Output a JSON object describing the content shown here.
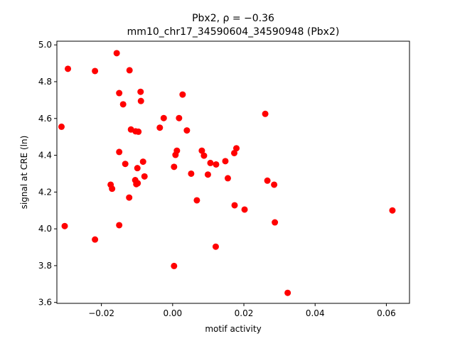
{
  "chart_data": {
    "type": "scatter",
    "title_line1": "Pbx2, ρ = −0.36",
    "title_line2": "mm10_chr17_34590604_34590948 (Pbx2)",
    "xlabel": "motif activity",
    "ylabel": "signal at CRE (ln)",
    "xlim": [
      -0.0325,
      0.0665
    ],
    "ylim": [
      3.595,
      5.02
    ],
    "xticks": [
      -0.02,
      0.0,
      0.02,
      0.04,
      0.06
    ],
    "xtick_labels": [
      "−0.02",
      "0.00",
      "0.02",
      "0.04",
      "0.06"
    ],
    "yticks": [
      3.6,
      3.8,
      4.0,
      4.2,
      4.4,
      4.6,
      4.8,
      5.0
    ],
    "ytick_labels": [
      "3.6",
      "3.8",
      "4.0",
      "4.2",
      "4.4",
      "4.6",
      "4.8",
      "5.0"
    ],
    "grid": false,
    "marker_color": "#ff0000",
    "points": [
      {
        "x": -0.0157,
        "y": 4.955
      },
      {
        "x": -0.0294,
        "y": 4.87
      },
      {
        "x": -0.0218,
        "y": 4.858
      },
      {
        "x": -0.0121,
        "y": 4.862
      },
      {
        "x": -0.015,
        "y": 4.738
      },
      {
        "x": -0.009,
        "y": 4.745
      },
      {
        "x": 0.0028,
        "y": 4.73
      },
      {
        "x": -0.0139,
        "y": 4.677
      },
      {
        "x": -0.0089,
        "y": 4.695
      },
      {
        "x": -0.0025,
        "y": 4.602
      },
      {
        "x": 0.0018,
        "y": 4.602
      },
      {
        "x": 0.026,
        "y": 4.625
      },
      {
        "x": -0.0036,
        "y": 4.55
      },
      {
        "x": -0.0117,
        "y": 4.54
      },
      {
        "x": -0.0104,
        "y": 4.53
      },
      {
        "x": -0.0096,
        "y": 4.528
      },
      {
        "x": 0.004,
        "y": 4.535
      },
      {
        "x": -0.0312,
        "y": 4.555
      },
      {
        "x": 0.0179,
        "y": 4.438
      },
      {
        "x": 0.0082,
        "y": 4.425
      },
      {
        "x": 0.0012,
        "y": 4.425
      },
      {
        "x": -0.015,
        "y": 4.418
      },
      {
        "x": 0.0173,
        "y": 4.412
      },
      {
        "x": 0.0008,
        "y": 4.402
      },
      {
        "x": 0.0088,
        "y": 4.398
      },
      {
        "x": 0.0148,
        "y": 4.368
      },
      {
        "x": -0.0083,
        "y": 4.365
      },
      {
        "x": 0.0106,
        "y": 4.358
      },
      {
        "x": 0.0122,
        "y": 4.35
      },
      {
        "x": -0.0133,
        "y": 4.353
      },
      {
        "x": 0.0004,
        "y": 4.337
      },
      {
        "x": -0.0099,
        "y": 4.33
      },
      {
        "x": 0.0052,
        "y": 4.3
      },
      {
        "x": 0.0099,
        "y": 4.295
      },
      {
        "x": -0.0079,
        "y": 4.285
      },
      {
        "x": 0.0155,
        "y": 4.275
      },
      {
        "x": -0.0105,
        "y": 4.265
      },
      {
        "x": 0.0266,
        "y": 4.262
      },
      {
        "x": -0.0102,
        "y": 4.243
      },
      {
        "x": -0.0098,
        "y": 4.248
      },
      {
        "x": 0.0285,
        "y": 4.24
      },
      {
        "x": -0.0174,
        "y": 4.24
      },
      {
        "x": -0.017,
        "y": 4.218
      },
      {
        "x": -0.0122,
        "y": 4.17
      },
      {
        "x": 0.0068,
        "y": 4.155
      },
      {
        "x": 0.0174,
        "y": 4.128
      },
      {
        "x": 0.0202,
        "y": 4.105
      },
      {
        "x": 0.0617,
        "y": 4.1
      },
      {
        "x": 0.0287,
        "y": 4.035
      },
      {
        "x": -0.0303,
        "y": 4.015
      },
      {
        "x": -0.015,
        "y": 4.02
      },
      {
        "x": -0.0218,
        "y": 3.942
      },
      {
        "x": 0.0121,
        "y": 3.903
      },
      {
        "x": 0.0004,
        "y": 3.798
      },
      {
        "x": 0.0323,
        "y": 3.652
      }
    ]
  }
}
